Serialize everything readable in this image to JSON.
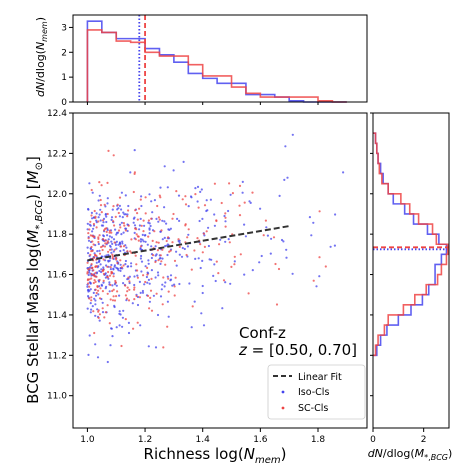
{
  "chart_data": [
    {
      "id": "main",
      "type": "scatter",
      "xlabel": "Richness log(N_mem)",
      "ylabel": "BCG Stellar Mass log(M_*,BCG) [M_⊙]",
      "xlim": [
        0.95,
        1.97
      ],
      "ylim": [
        10.84,
        12.4
      ],
      "xticks": [
        "1.0",
        "1.2",
        "1.4",
        "1.6",
        "1.8"
      ],
      "yticks": [
        "11.0",
        "11.2",
        "11.4",
        "11.6",
        "11.8",
        "12.0",
        "12.2",
        "12.4"
      ],
      "annotation": [
        "Conf-z",
        "z = [0.50, 0.70]"
      ],
      "legend_position": "lower-right",
      "fit_line": {
        "name": "Linear Fit",
        "color": "#333333",
        "style": "dashed",
        "x": [
          1.0,
          1.7
        ],
        "y": [
          11.67,
          11.84
        ]
      },
      "series": [
        {
          "name": "Iso-Cls",
          "color": "#4444ee",
          "center": 11.71,
          "spread": 0.17,
          "count": 520
        },
        {
          "name": "SC-Cls",
          "color": "#ee4444",
          "center": 11.72,
          "spread": 0.18,
          "count": 330
        }
      ]
    },
    {
      "id": "top",
      "type": "histogram",
      "ylabel": "dN/dlog(N_mem)",
      "xlim": [
        0.95,
        1.97
      ],
      "ylim": [
        0,
        3.5
      ],
      "yticks": [
        "0",
        "1",
        "2",
        "3"
      ],
      "bin_edges": [
        1.0,
        1.05,
        1.1,
        1.15,
        1.2,
        1.25,
        1.3,
        1.35,
        1.4,
        1.45,
        1.5,
        1.55,
        1.6,
        1.65,
        1.7,
        1.75,
        1.8,
        1.85,
        1.9
      ],
      "series": [
        {
          "name": "Iso-Cls",
          "color": "#4444ee",
          "median": 1.18,
          "values": [
            3.25,
            2.8,
            2.55,
            2.55,
            2.15,
            1.9,
            1.6,
            1.15,
            0.95,
            0.75,
            0.75,
            0.3,
            0.3,
            0.2,
            0.05,
            0,
            0,
            0
          ]
        },
        {
          "name": "SC-Cls",
          "color": "#ee4444",
          "median": 1.2,
          "values": [
            2.9,
            2.8,
            2.45,
            2.4,
            2.0,
            1.85,
            1.85,
            1.5,
            1.05,
            1.05,
            0.6,
            0.35,
            0.2,
            0.2,
            0.2,
            0.2,
            0.05,
            0
          ]
        }
      ]
    },
    {
      "id": "right",
      "type": "histogram",
      "orientation": "horizontal",
      "xlabel": "dN/dlog(M_*,BCG)",
      "xlim": [
        0,
        3.0
      ],
      "ylim": [
        10.84,
        12.4
      ],
      "xticks": [
        "0",
        "2"
      ],
      "xtick_values": [
        0,
        2
      ],
      "bin_edges": [
        11.2,
        11.25,
        11.3,
        11.35,
        11.4,
        11.45,
        11.5,
        11.55,
        11.6,
        11.65,
        11.7,
        11.75,
        11.8,
        11.85,
        11.9,
        11.95,
        12.0,
        12.05,
        12.1,
        12.15,
        12.2,
        12.25,
        12.3
      ],
      "series": [
        {
          "name": "Iso-Cls",
          "color": "#4444ee",
          "median": 11.73,
          "values": [
            0.15,
            0.3,
            0.55,
            1.0,
            1.5,
            1.95,
            2.2,
            2.45,
            2.45,
            2.7,
            2.9,
            2.6,
            2.15,
            1.6,
            1.25,
            0.8,
            0.6,
            0.4,
            0.3,
            0.2,
            0.15,
            0.1
          ]
        },
        {
          "name": "SC-Cls",
          "color": "#ee4444",
          "median": 11.73,
          "values": [
            0.1,
            0.2,
            0.45,
            0.6,
            1.2,
            1.65,
            2.1,
            2.55,
            2.7,
            2.9,
            2.95,
            2.5,
            2.35,
            1.8,
            1.45,
            1.1,
            0.6,
            0.35,
            0.25,
            0.2,
            0.15,
            0.1
          ]
        }
      ]
    }
  ]
}
